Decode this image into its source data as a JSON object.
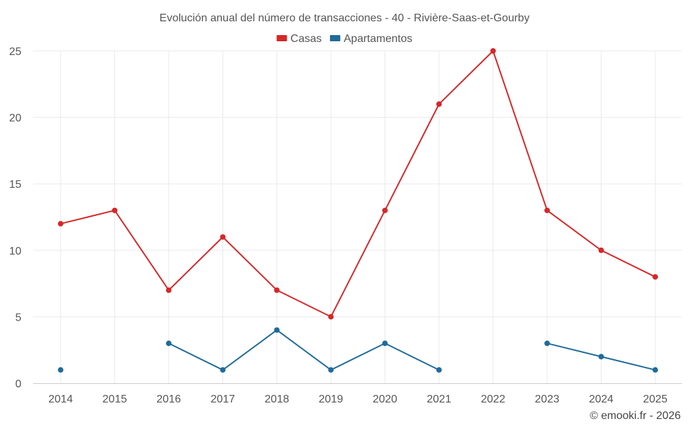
{
  "chart_data": {
    "type": "line",
    "title": "Evolución anual del número de transacciones - 40 - Rivière-Saas-et-Gourby",
    "categories": [
      "2014",
      "2015",
      "2016",
      "2017",
      "2018",
      "2019",
      "2020",
      "2021",
      "2022",
      "2023",
      "2024",
      "2025"
    ],
    "series": [
      {
        "name": "Casas",
        "color": "#d62728",
        "values": [
          12,
          13,
          7,
          11,
          7,
          5,
          13,
          21,
          25,
          13,
          10,
          8
        ]
      },
      {
        "name": "Apartamentos",
        "color": "#1f6b9a",
        "values": [
          1,
          null,
          3,
          1,
          4,
          1,
          3,
          1,
          null,
          3,
          2,
          1
        ]
      }
    ],
    "ylim": [
      0,
      25
    ],
    "yticks": [
      "0",
      "5",
      "10",
      "15",
      "20",
      "25"
    ],
    "legend_position": "top-center",
    "grid": true,
    "xlabel": "",
    "ylabel": ""
  },
  "credit": "© emooki.fr - 2026"
}
